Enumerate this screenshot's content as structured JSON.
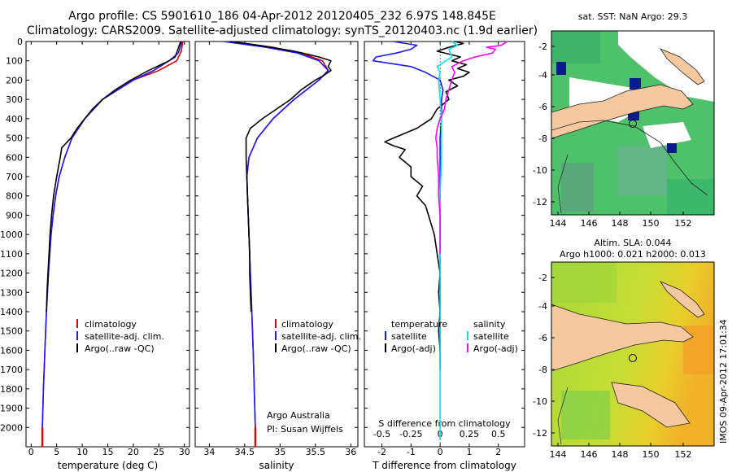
{
  "header": {
    "title_line1": "Argo profile: CS 5901610_186 04-Apr-2012 20120405_232 6.97S 148.845E",
    "title_line2": "Climatology: CARS2009. Satellite-adjusted climatology: synTS_20120403.nc (1.9d earlier)"
  },
  "colors": {
    "climatology": "#e00000",
    "satellite": "#1a1aff",
    "argo": "#000000",
    "satellite_diff": "#00e5ee",
    "argo_diff": "#ff00ff",
    "land": "#f5c8a0"
  },
  "legend_labels": {
    "climatology": "climatology",
    "satellite": "satellite-adj. clim.",
    "argo": "Argo(..raw -QC)"
  },
  "diff_legend": {
    "temp_head": "temperature",
    "sal_head": "salinity",
    "satellite": "satellite",
    "argo": "Argo(-adj)"
  },
  "credits": {
    "line1": "Argo Australia",
    "line2": "PI: Susan Wijffels"
  },
  "maps": {
    "sst_title": "sat. SST: NaN Argo: 29.3",
    "sla_title_line1": "Altim. SLA: 0.044",
    "sla_title_line2": "Argo h1000: 0.021 h2000: 0.013",
    "x_ticks": [
      "144",
      "146",
      "148",
      "150",
      "152"
    ],
    "y_ticks": [
      "-2",
      "-4",
      "-6",
      "-8",
      "-10",
      "-12"
    ]
  },
  "side_stamp": "IMOS 09-Apr-2012 17:01:34",
  "chart_data": [
    {
      "type": "line",
      "id": "temperature",
      "xlabel": "temperature (deg C)",
      "ylabel": "",
      "xlim": [
        -1,
        31
      ],
      "ylim": [
        2100,
        0
      ],
      "x_ticks": [
        0,
        5,
        10,
        15,
        20,
        25,
        30
      ],
      "y_ticks": [
        0,
        100,
        200,
        300,
        400,
        500,
        600,
        700,
        800,
        900,
        1000,
        1100,
        1200,
        1300,
        1400,
        1500,
        1600,
        1700,
        1800,
        1900,
        2000
      ],
      "series": [
        {
          "name": "climatology",
          "color": "#e00000",
          "depth": [
            0,
            50,
            100,
            150,
            200,
            300,
            400,
            500,
            600,
            700,
            800,
            900,
            1000,
            1200,
            1400,
            1600,
            1800,
            2000,
            2060
          ],
          "value": [
            29.7,
            29.4,
            28.5,
            25,
            20,
            14,
            10.5,
            8,
            6.6,
            5.5,
            4.8,
            4.3,
            3.9,
            3.4,
            3.0,
            2.7,
            2.4,
            2.2,
            2.2
          ]
        },
        {
          "name": "satellite-adj. clim.",
          "color": "#1a1aff",
          "depth": [
            0,
            20,
            60,
            100,
            150,
            200,
            300,
            400,
            500,
            600,
            700,
            800,
            900,
            1000,
            1200,
            1400,
            1600,
            1800,
            2000,
            2060
          ],
          "value": [
            29.5,
            29.3,
            28.8,
            27,
            24,
            20,
            14,
            10.5,
            8,
            6.6,
            5.5,
            4.8,
            4.3,
            3.9,
            3.4,
            3.0,
            2.7,
            2.4,
            2.2,
            2.2
          ]
        },
        {
          "name": "Argo(..raw -QC)",
          "color": "#000000",
          "depth": [
            0,
            20,
            50,
            80,
            100,
            150,
            200,
            250,
            300,
            350,
            400,
            450,
            500,
            550,
            600,
            700,
            800,
            900,
            1000,
            1100,
            1200,
            1300,
            1400
          ],
          "value": [
            29.3,
            29.0,
            28.6,
            28.2,
            27.0,
            23.0,
            19.5,
            16.5,
            14.0,
            12.0,
            10.5,
            9.0,
            7.8,
            6.0,
            5.7,
            5.0,
            4.4,
            4.0,
            3.7,
            3.5,
            3.3,
            3.1,
            3.0
          ]
        }
      ]
    },
    {
      "type": "line",
      "id": "salinity",
      "xlabel": "salinity",
      "ylabel": "",
      "xlim": [
        33.8,
        36.1
      ],
      "ylim": [
        2100,
        0
      ],
      "x_ticks": [
        34,
        34.5,
        35,
        35.5,
        36
      ],
      "series": [
        {
          "name": "climatology",
          "color": "#e00000",
          "depth": [
            0,
            30,
            60,
            100,
            150,
            200,
            300,
            400,
            500,
            600,
            700,
            800,
            1000,
            1200,
            1400,
            1600,
            2000,
            2060
          ],
          "value": [
            34.3,
            34.9,
            35.3,
            35.6,
            35.68,
            35.55,
            35.2,
            34.9,
            34.68,
            34.56,
            34.53,
            34.54,
            34.56,
            34.58,
            34.6,
            34.62,
            34.65,
            34.65
          ]
        },
        {
          "name": "satellite-adj. clim.",
          "color": "#1a1aff",
          "depth": [
            0,
            30,
            60,
            100,
            150,
            200,
            300,
            400,
            500,
            600,
            700,
            800,
            1000,
            1200,
            1400,
            1600,
            2000,
            2060
          ],
          "value": [
            34.2,
            34.8,
            35.25,
            35.55,
            35.68,
            35.55,
            35.2,
            34.9,
            34.68,
            34.56,
            34.53,
            34.54,
            34.56,
            34.58,
            34.6,
            34.62,
            34.65,
            34.65
          ]
        },
        {
          "name": "Argo(..raw -QC)",
          "color": "#000000",
          "depth": [
            0,
            20,
            50,
            80,
            100,
            130,
            150,
            180,
            200,
            250,
            300,
            350,
            400,
            450,
            500,
            550,
            600,
            700,
            800,
            900,
            1000,
            1100,
            1200,
            1300,
            1400
          ],
          "value": [
            34.3,
            34.7,
            35.2,
            35.55,
            35.72,
            35.68,
            35.72,
            35.6,
            35.5,
            35.3,
            35.15,
            34.95,
            34.75,
            34.58,
            34.52,
            34.52,
            34.52,
            34.53,
            34.54,
            34.55,
            34.56,
            34.57,
            34.57,
            34.58,
            34.59
          ]
        }
      ]
    },
    {
      "type": "line",
      "id": "differences",
      "xlabel_top": "S difference from climatology",
      "xlabel": "T difference from climatology",
      "ylabel": "",
      "xlim": [
        -2.6,
        2.9
      ],
      "ylim": [
        2100,
        0
      ],
      "x_ticks_top": [
        "-0.5",
        "-0.25",
        "0",
        "0.25",
        "0.5"
      ],
      "x_ticks_top_pos": [
        -2,
        -1,
        0,
        1,
        2
      ],
      "x_ticks": [
        -2,
        -1,
        0,
        1,
        2
      ],
      "series": [
        {
          "name": "temperature satellite",
          "color": "#1a1aff",
          "depth": [
            0,
            20,
            40,
            60,
            80,
            100,
            130,
            160,
            200,
            250,
            300,
            400,
            500,
            600,
            800,
            1000,
            1200,
            1400,
            1600
          ],
          "value": [
            -1.6,
            -0.8,
            -1.0,
            -1.5,
            -2.2,
            -2.3,
            -1.0,
            -0.5,
            0.0,
            0.1,
            0.05,
            0.05,
            0.0,
            0.0,
            0.0,
            0.0,
            0.0,
            0.0,
            0.0
          ]
        },
        {
          "name": "temperature Argo(-adj)",
          "color": "#000000",
          "depth": [
            0,
            10,
            30,
            50,
            80,
            100,
            120,
            140,
            160,
            180,
            200,
            230,
            260,
            300,
            350,
            400,
            450,
            500,
            520,
            540,
            560,
            600,
            650,
            700,
            750,
            800,
            850,
            900,
            950,
            1000,
            1100,
            1200,
            1300,
            1400,
            1500,
            1600,
            1700
          ],
          "value": [
            0.5,
            0.8,
            0.3,
            -0.1,
            0.7,
            0.4,
            0.9,
            0.6,
            1.0,
            0.8,
            0.3,
            0.6,
            0.2,
            0.3,
            -0.1,
            -0.3,
            -0.8,
            -1.6,
            -1.9,
            -1.6,
            -1.2,
            -1.4,
            -1.0,
            -1.0,
            -0.6,
            -0.8,
            -0.5,
            -0.4,
            -0.3,
            -0.2,
            -0.1,
            0.0,
            -0.05,
            0.0,
            -0.05,
            0.0,
            0.0
          ]
        },
        {
          "name": "salinity satellite",
          "color": "#00e5ee",
          "depth": [
            0,
            20,
            40,
            80,
            100,
            130,
            160,
            200,
            300,
            400,
            600,
            800,
            1000,
            1500,
            2060
          ],
          "value": [
            0.4,
            0.6,
            0.3,
            0.4,
            0.2,
            -0.1,
            0.0,
            -0.05,
            0.0,
            0.05,
            0.05,
            0.0,
            0.0,
            0.0,
            0.0
          ]
        },
        {
          "name": "salinity Argo(-adj)",
          "color": "#ff00ff",
          "depth": [
            0,
            20,
            30,
            40,
            60,
            80,
            100,
            130,
            160,
            200,
            250,
            300,
            350,
            400,
            450,
            500,
            550,
            600,
            700,
            800,
            900,
            1000,
            1100
          ],
          "value": [
            2.3,
            2.1,
            1.6,
            1.9,
            1.8,
            1.2,
            0.8,
            0.4,
            0.5,
            0.4,
            0.3,
            0.2,
            0.15,
            0.0,
            -0.1,
            -0.15,
            -0.1,
            -0.1,
            -0.05,
            -0.05,
            0.0,
            0.0,
            0.0
          ]
        }
      ]
    }
  ]
}
